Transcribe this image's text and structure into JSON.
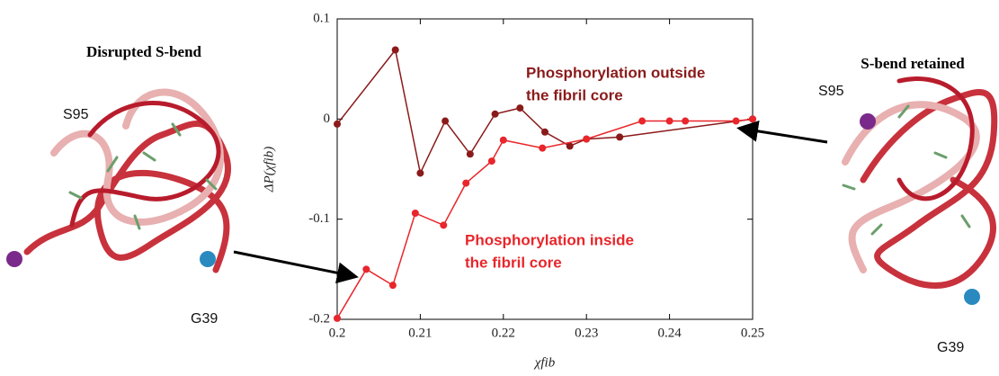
{
  "chart_data": {
    "type": "line",
    "y_label": "ΔP(χfib)",
    "x_label": "χfib",
    "xlim": [
      0.2,
      0.25
    ],
    "xticks": [
      0.2,
      0.21,
      0.22,
      0.23,
      0.24,
      0.25
    ],
    "ylim": [
      -0.2,
      0.1
    ],
    "yticks": [
      -0.2,
      -0.1,
      0,
      0.1
    ],
    "series": [
      {
        "name": "Phosphorylation outside the fibril core",
        "color": "#8b1a1a",
        "x": [
          0.2,
          0.207,
          0.21,
          0.213,
          0.216,
          0.219,
          0.222,
          0.225,
          0.228,
          0.23,
          0.234,
          0.25
        ],
        "values": [
          -0.005,
          0.069,
          -0.054,
          -0.002,
          -0.035,
          0.005,
          0.011,
          -0.013,
          -0.027,
          -0.02,
          -0.018,
          0
        ]
      },
      {
        "name": "Phosphorylation inside the fibril core",
        "color": "#e8262b",
        "x": [
          0.2,
          0.2035,
          0.2067,
          0.2094,
          0.2128,
          0.2155,
          0.2186,
          0.22,
          0.2247,
          0.23,
          0.2367,
          0.24,
          0.2419,
          0.248,
          0.25
        ],
        "values": [
          -0.199,
          -0.15,
          -0.166,
          -0.094,
          -0.106,
          -0.064,
          -0.042,
          -0.021,
          -0.029,
          -0.02,
          -0.002,
          -0.002,
          -0.002,
          -0.002,
          0
        ]
      }
    ],
    "annotations": [
      {
        "lines": [
          "Phosphorylation outside",
          "the fibril core"
        ],
        "color": "#8b1a1a"
      },
      {
        "lines": [
          "Phosphorylation inside",
          "the fibril core"
        ],
        "color": "#e8262b"
      }
    ]
  },
  "panels": [
    {
      "title": "Disrupted S-bend",
      "labels": [
        "S95",
        "G39"
      ]
    },
    {
      "title": "S-bend retained",
      "labels": [
        "S95",
        "G39"
      ]
    }
  ]
}
